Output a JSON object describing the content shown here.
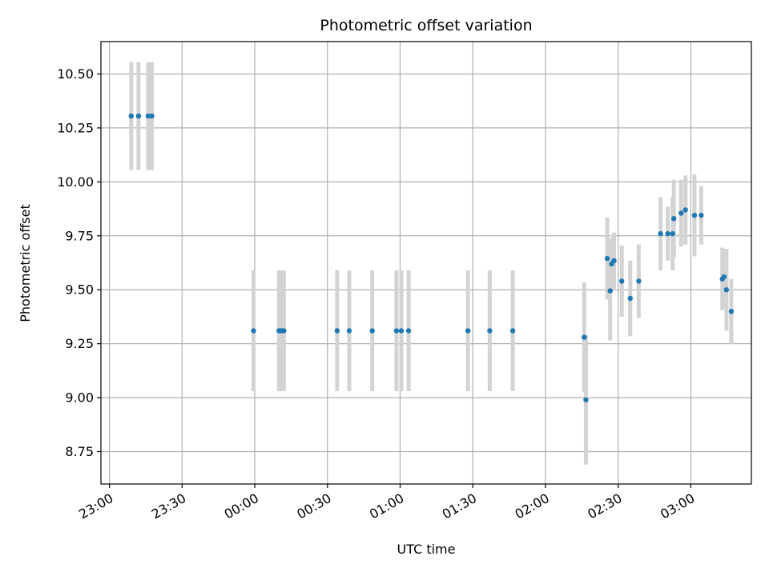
{
  "chart_data": {
    "type": "scatter",
    "title": "Photometric offset variation",
    "xlabel": "UTC time",
    "ylabel": "Photometric offset",
    "x_tick_labels": [
      "23:00",
      "23:30",
      "00:00",
      "00:30",
      "01:00",
      "01:30",
      "02:00",
      "02:30",
      "03:00"
    ],
    "x_tick_minutes": [
      0,
      30,
      60,
      90,
      120,
      150,
      180,
      210,
      240
    ],
    "xlim": [
      -3.5,
      265
    ],
    "y_ticks": [
      8.75,
      9.0,
      9.25,
      9.5,
      9.75,
      10.0,
      10.25,
      10.5
    ],
    "y_tick_labels": [
      "8.75",
      "9.00",
      "9.25",
      "9.50",
      "9.75",
      "10.00",
      "10.25",
      "10.50"
    ],
    "ylim": [
      8.6,
      10.65
    ],
    "grid": true,
    "point_color": "#1f77b4",
    "errorbar_color": "#d3d3d3",
    "points": [
      {
        "t": 9.0,
        "y": 10.305,
        "err": 0.25
      },
      {
        "t": 12.0,
        "y": 10.305,
        "err": 0.25
      },
      {
        "t": 16.0,
        "y": 10.305,
        "err": 0.25
      },
      {
        "t": 17.5,
        "y": 10.305,
        "err": 0.25
      },
      {
        "t": 59.5,
        "y": 9.31,
        "err": 0.28
      },
      {
        "t": 70.0,
        "y": 9.31,
        "err": 0.28
      },
      {
        "t": 71.0,
        "y": 9.31,
        "err": 0.28
      },
      {
        "t": 72.0,
        "y": 9.31,
        "err": 0.28
      },
      {
        "t": 94.0,
        "y": 9.31,
        "err": 0.28
      },
      {
        "t": 99.0,
        "y": 9.31,
        "err": 0.28
      },
      {
        "t": 108.5,
        "y": 9.31,
        "err": 0.28
      },
      {
        "t": 118.5,
        "y": 9.31,
        "err": 0.28
      },
      {
        "t": 120.5,
        "y": 9.31,
        "err": 0.28
      },
      {
        "t": 123.5,
        "y": 9.31,
        "err": 0.28
      },
      {
        "t": 148.0,
        "y": 9.31,
        "err": 0.28
      },
      {
        "t": 157.0,
        "y": 9.31,
        "err": 0.28
      },
      {
        "t": 166.5,
        "y": 9.31,
        "err": 0.28
      },
      {
        "t": 196.0,
        "y": 9.28,
        "err": 0.255
      },
      {
        "t": 196.7,
        "y": 8.99,
        "err": 0.3
      },
      {
        "t": 205.5,
        "y": 9.645,
        "err": 0.19
      },
      {
        "t": 206.7,
        "y": 9.495,
        "err": 0.23
      },
      {
        "t": 207.3,
        "y": 9.62,
        "err": 0.12
      },
      {
        "t": 208.3,
        "y": 9.635,
        "err": 0.13
      },
      {
        "t": 211.5,
        "y": 9.54,
        "err": 0.165
      },
      {
        "t": 215.0,
        "y": 9.46,
        "err": 0.175
      },
      {
        "t": 218.5,
        "y": 9.54,
        "err": 0.17
      },
      {
        "t": 227.5,
        "y": 9.76,
        "err": 0.17
      },
      {
        "t": 230.5,
        "y": 9.76,
        "err": 0.125
      },
      {
        "t": 232.5,
        "y": 9.76,
        "err": 0.17
      },
      {
        "t": 233.0,
        "y": 9.83,
        "err": 0.18
      },
      {
        "t": 236.0,
        "y": 9.855,
        "err": 0.155
      },
      {
        "t": 237.8,
        "y": 9.87,
        "err": 0.16
      },
      {
        "t": 241.5,
        "y": 9.845,
        "err": 0.19
      },
      {
        "t": 244.3,
        "y": 9.845,
        "err": 0.135
      },
      {
        "t": 253.0,
        "y": 9.55,
        "err": 0.145
      },
      {
        "t": 253.7,
        "y": 9.56,
        "err": 0.13
      },
      {
        "t": 254.7,
        "y": 9.5,
        "err": 0.19
      },
      {
        "t": 256.7,
        "y": 9.4,
        "err": 0.15
      }
    ]
  }
}
